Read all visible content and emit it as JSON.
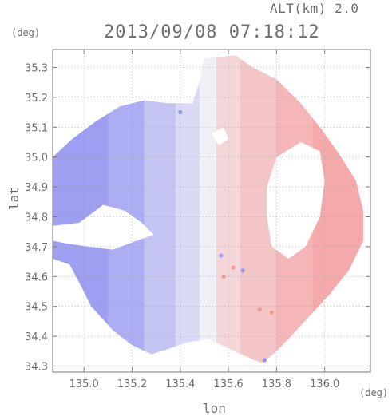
{
  "header": {
    "alt_label": "ALT(km) 2.0",
    "timestamp": "2013/09/08 07:18:12",
    "y_unit": "(deg)",
    "x_unit": "(deg)",
    "xlabel": "lon",
    "ylabel": "lat"
  },
  "chart_data": {
    "type": "heatmap",
    "title": "2013/09/08 07:18:12",
    "subtitle": "ALT(km) 2.0",
    "xlabel": "lon",
    "ylabel": "lat",
    "x_unit": "(deg)",
    "y_unit": "(deg)",
    "xlim": [
      134.87,
      136.19
    ],
    "ylim": [
      34.28,
      35.36
    ],
    "x_ticks": [
      135.0,
      135.2,
      135.4,
      135.6,
      135.8,
      136.0
    ],
    "x_tick_labels": [
      "135.0",
      "135.2",
      "135.4",
      "135.6",
      "135.8",
      "136.0"
    ],
    "y_ticks": [
      34.3,
      34.4,
      34.5,
      34.6,
      34.7,
      34.8,
      34.9,
      35.0,
      35.1,
      35.2,
      35.3
    ],
    "y_tick_labels": [
      "34.3",
      "34.4",
      "34.5",
      "34.6",
      "34.7",
      "34.8",
      "34.9",
      "35.0",
      "35.1",
      "35.2",
      "35.3"
    ],
    "grid": true,
    "colormap": {
      "negative": "#8c8cf0",
      "zero": "#f4f4f8",
      "positive": "#f58c8c"
    },
    "domain_outline": [
      [
        135.5,
        35.33
      ],
      [
        135.63,
        35.34
      ],
      [
        135.7,
        35.3
      ],
      [
        135.8,
        35.26
      ],
      [
        135.9,
        35.18
      ],
      [
        135.98,
        35.1
      ],
      [
        136.06,
        35.01
      ],
      [
        136.13,
        34.92
      ],
      [
        136.16,
        34.82
      ],
      [
        136.16,
        34.72
      ],
      [
        136.1,
        34.62
      ],
      [
        136.02,
        34.54
      ],
      [
        135.94,
        34.47
      ],
      [
        135.86,
        34.4
      ],
      [
        135.8,
        34.35
      ],
      [
        135.74,
        34.31
      ],
      [
        135.68,
        34.33
      ],
      [
        135.6,
        34.36
      ],
      [
        135.52,
        34.39
      ],
      [
        135.43,
        34.38
      ],
      [
        135.36,
        34.36
      ],
      [
        135.28,
        34.34
      ],
      [
        135.2,
        34.37
      ],
      [
        135.12,
        34.42
      ],
      [
        135.03,
        34.5
      ],
      [
        134.98,
        34.58
      ],
      [
        134.94,
        34.64
      ],
      [
        134.87,
        34.66
      ],
      [
        134.87,
        35.0
      ],
      [
        134.95,
        35.06
      ],
      [
        135.05,
        35.12
      ],
      [
        135.15,
        35.17
      ],
      [
        135.25,
        35.19
      ],
      [
        135.35,
        35.18
      ],
      [
        135.45,
        35.18
      ],
      [
        135.48,
        35.25
      ]
    ],
    "no_echo_regions": [
      [
        [
          134.87,
          34.77
        ],
        [
          134.98,
          34.78
        ],
        [
          135.08,
          34.84
        ],
        [
          135.17,
          34.82
        ],
        [
          135.24,
          34.78
        ],
        [
          135.29,
          34.74
        ],
        [
          135.22,
          34.72
        ],
        [
          135.12,
          34.69
        ],
        [
          135.02,
          34.7
        ],
        [
          134.93,
          34.71
        ],
        [
          134.87,
          34.72
        ]
      ],
      [
        [
          135.8,
          35.0
        ],
        [
          135.9,
          35.05
        ],
        [
          135.98,
          35.02
        ],
        [
          136.0,
          34.92
        ],
        [
          135.98,
          34.8
        ],
        [
          135.92,
          34.7
        ],
        [
          135.85,
          34.66
        ],
        [
          135.78,
          34.7
        ],
        [
          135.76,
          34.8
        ],
        [
          135.76,
          34.9
        ]
      ],
      [
        [
          135.53,
          35.08
        ],
        [
          135.58,
          35.1
        ],
        [
          135.6,
          35.06
        ],
        [
          135.56,
          35.04
        ]
      ]
    ],
    "field_bands": [
      {
        "lon_min": 134.87,
        "lon_max": 135.1,
        "value": -0.82
      },
      {
        "lon_min": 135.1,
        "lon_max": 135.25,
        "value": -0.68
      },
      {
        "lon_min": 135.25,
        "lon_max": 135.38,
        "value": -0.45
      },
      {
        "lon_min": 135.38,
        "lon_max": 135.48,
        "value": -0.25
      },
      {
        "lon_min": 135.48,
        "lon_max": 135.55,
        "value": -0.05
      },
      {
        "lon_min": 135.55,
        "lon_max": 135.65,
        "value": 0.3
      },
      {
        "lon_min": 135.65,
        "lon_max": 135.8,
        "value": 0.45
      },
      {
        "lon_min": 135.8,
        "lon_max": 135.95,
        "value": 0.6
      },
      {
        "lon_min": 135.95,
        "lon_max": 136.19,
        "value": 0.72
      }
    ],
    "speckles": [
      {
        "lon": 135.62,
        "lat": 34.63,
        "value": 0.9
      },
      {
        "lon": 135.58,
        "lat": 34.6,
        "value": 0.9
      },
      {
        "lon": 135.66,
        "lat": 34.62,
        "value": -0.9
      },
      {
        "lon": 135.73,
        "lat": 34.49,
        "value": 0.9
      },
      {
        "lon": 135.78,
        "lat": 34.48,
        "value": 0.9
      },
      {
        "lon": 135.75,
        "lat": 34.32,
        "value": -0.95
      },
      {
        "lon": 135.57,
        "lat": 34.67,
        "value": -0.8
      },
      {
        "lon": 135.4,
        "lat": 35.15,
        "value": -0.9
      }
    ]
  }
}
